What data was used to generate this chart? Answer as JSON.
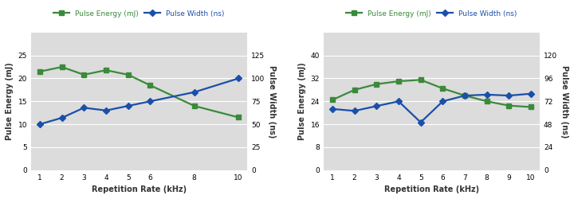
{
  "left": {
    "x": [
      1,
      2,
      3,
      4,
      5,
      6,
      8,
      10
    ],
    "energy": [
      21.5,
      22.5,
      20.8,
      21.8,
      20.8,
      18.5,
      14.0,
      11.5
    ],
    "pw_ns": [
      50,
      57,
      68,
      65,
      70,
      75,
      85,
      100
    ],
    "energy_label": "Pulse Energy (mJ)",
    "pw_label": "Pulse Width (ns)",
    "xlabel": "Repetition Rate (kHz)",
    "ylim_left": [
      0,
      30
    ],
    "ylim_right": [
      0,
      150
    ],
    "yticks_left": [
      0,
      5,
      10,
      15,
      20,
      25
    ],
    "yticks_right": [
      0,
      25,
      50,
      75,
      100,
      125
    ],
    "xticks": [
      1,
      2,
      3,
      4,
      5,
      6,
      8,
      10
    ],
    "legend_energy": "Pulse Energy (mJ)",
    "legend_pw": "Pulse Width (ns)"
  },
  "right": {
    "x": [
      1,
      2,
      3,
      4,
      5,
      6,
      7,
      8,
      9,
      10
    ],
    "energy": [
      24.5,
      28.0,
      30.0,
      31.0,
      31.5,
      28.5,
      26.0,
      24.0,
      22.5,
      22.0
    ],
    "pw_ns": [
      64,
      62,
      67,
      72,
      50,
      72,
      78,
      79,
      78,
      80
    ],
    "energy_label": "Pulse Energy (mJ)",
    "pw_label": "Pulse Width (ns)",
    "xlabel": "Repetition Rate (kHz)",
    "ylim_left": [
      0,
      48
    ],
    "ylim_right": [
      0,
      144
    ],
    "yticks_left": [
      0,
      8,
      16,
      24,
      32,
      40
    ],
    "yticks_right": [
      0,
      24,
      48,
      72,
      96,
      120
    ],
    "xticks": [
      1,
      2,
      3,
      4,
      5,
      6,
      7,
      8,
      9,
      10
    ],
    "legend_energy": "Pulse Energy (mJ)",
    "legend_pw": "Pulse Width (ns)"
  },
  "green_color": "#3A8A3A",
  "blue_color": "#1A4FAA",
  "marker_green": "s",
  "marker_blue": "D",
  "linewidth": 1.6,
  "markersize": 4,
  "bg_color": "#DCDCDC",
  "grid_color": "#FFFFFF",
  "fig_bg": "#FFFFFF",
  "label_fontsize": 7.0,
  "tick_fontsize": 6.5,
  "legend_fontsize": 6.5
}
